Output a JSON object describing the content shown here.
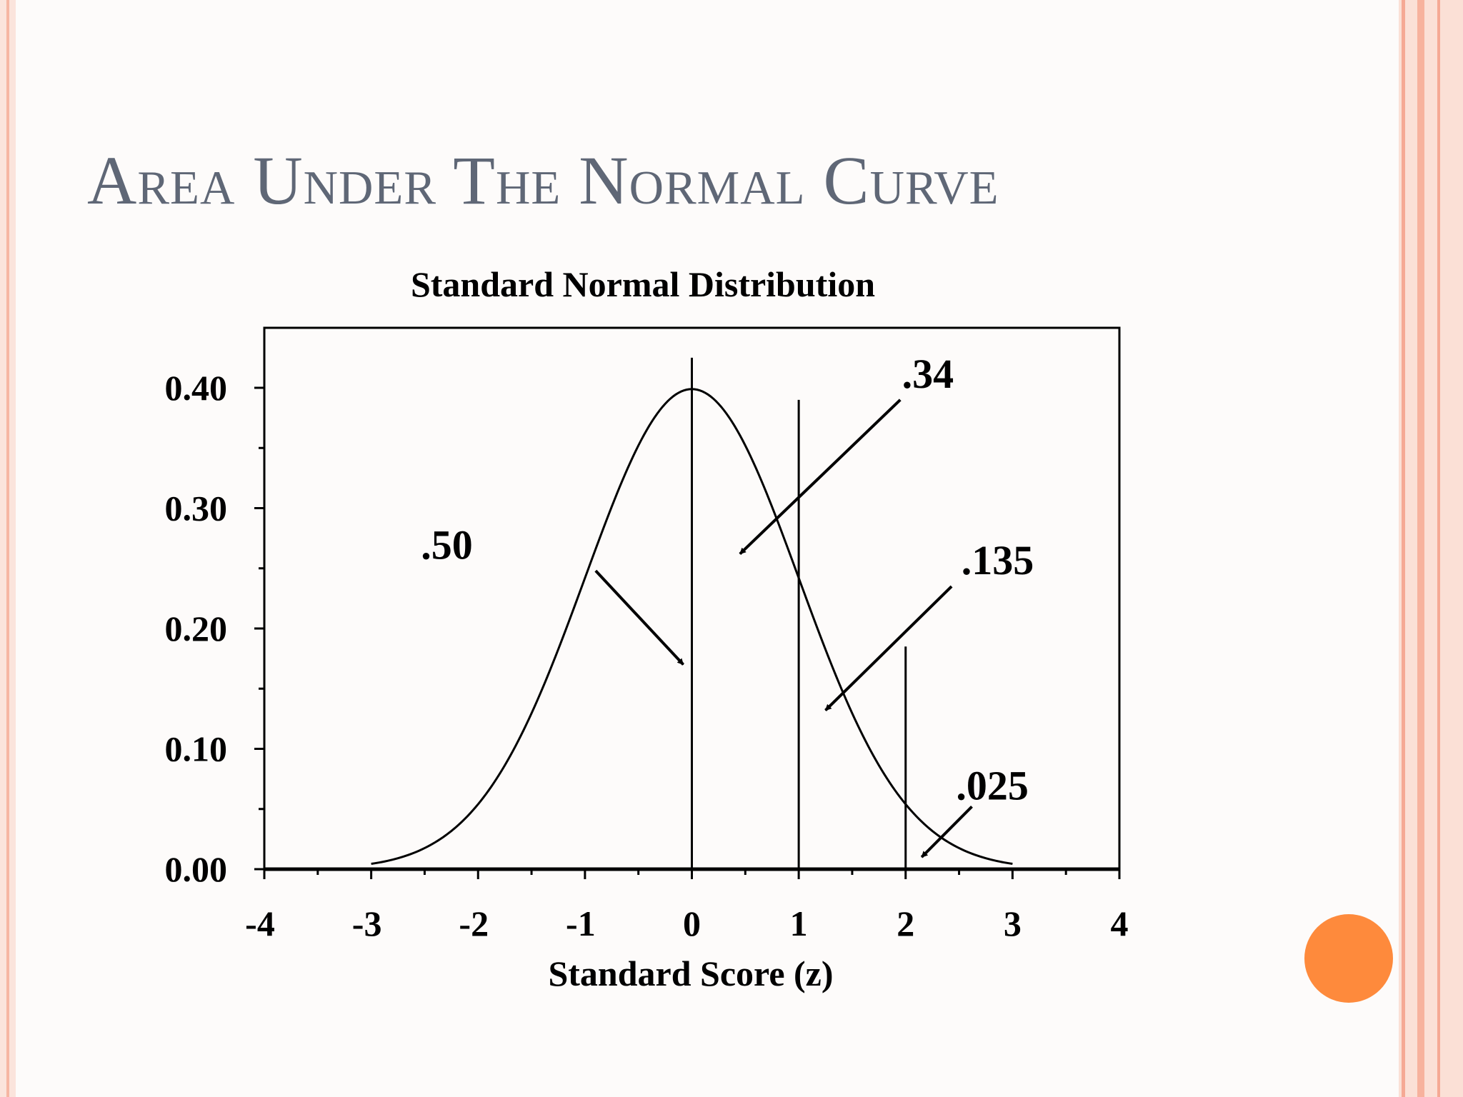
{
  "slide": {
    "title": "Area Under The Normal Curve",
    "accent_color": "#fe8a3c",
    "border_color": "#f8b8a4"
  },
  "chart_data": {
    "type": "line",
    "title": "Standard Normal Distribution",
    "xlabel": "Standard Score (z)",
    "ylabel": "",
    "xlim": [
      -4,
      4
    ],
    "ylim": [
      0,
      0.45
    ],
    "x_ticks": [
      -4,
      -3,
      -2,
      -1,
      0,
      1,
      2,
      3,
      4
    ],
    "x_tick_labels": [
      "-4",
      "-3",
      "-2",
      "-1",
      "0",
      "1",
      "2",
      "3",
      "4"
    ],
    "y_ticks": [
      0,
      0.1,
      0.2,
      0.3,
      0.4
    ],
    "y_tick_labels": [
      "0.00",
      "0.10",
      "0.20",
      "0.30",
      "0.40"
    ],
    "grid": false,
    "legend": "none",
    "curve": {
      "mean": 0,
      "sd": 1,
      "x_range": [
        -3,
        3
      ]
    },
    "reference_lines": [
      {
        "x": 0,
        "y_top": 0.425
      },
      {
        "x": 1,
        "y_top": 0.39
      },
      {
        "x": 2,
        "y_top": 0.185
      }
    ],
    "annotations": [
      {
        "label": ".50",
        "text_pos": [
          -2.05,
          0.258
        ],
        "arrow_from": [
          -0.9,
          0.248
        ],
        "arrow_to": [
          -0.08,
          0.17
        ]
      },
      {
        "label": ".34",
        "text_pos": [
          2.45,
          0.4
        ],
        "arrow_from": [
          1.95,
          0.39
        ],
        "arrow_to": [
          0.45,
          0.262
        ]
      },
      {
        "label": ".135",
        "text_pos": [
          3.2,
          0.245
        ],
        "arrow_from": [
          2.43,
          0.235
        ],
        "arrow_to": [
          1.25,
          0.132
        ]
      },
      {
        "label": ".025",
        "text_pos": [
          3.15,
          0.058
        ],
        "arrow_from": [
          2.62,
          0.052
        ],
        "arrow_to": [
          2.15,
          0.01
        ]
      }
    ]
  }
}
